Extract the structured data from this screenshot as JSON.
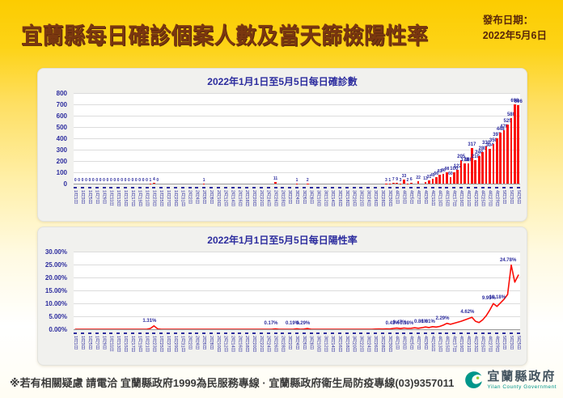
{
  "header": {
    "title": "宜蘭縣每日確診個案人數及當天篩檢陽性率",
    "release_label": "發布日期：",
    "release_date": "2022年5月6日"
  },
  "colors": {
    "bar": "#fb0d07",
    "line": "#fb0d07",
    "label_blue": "#2c2c9e",
    "title_brown": "#7a3710",
    "page_yellow": "#fccc00"
  },
  "x_tick_labels": [
    "1月1日",
    "1月3日",
    "1月5日",
    "1月7日",
    "1月9日",
    "1月11日",
    "1月13日",
    "1月15日",
    "1月17日",
    "1月19日",
    "1月21日",
    "1月23日",
    "1月25日",
    "1月27日",
    "1月29日",
    "1月31日",
    "2月2日",
    "2月4日",
    "2月6日",
    "2月8日",
    "2月10日",
    "2月12日",
    "2月14日",
    "2月16日",
    "2月18日",
    "2月20日",
    "2月22日",
    "2月24日",
    "2月26日",
    "2月28日",
    "3月2日",
    "3月4日",
    "3月6日",
    "3月8日",
    "3月10日",
    "3月12日",
    "3月14日",
    "3月16日",
    "3月18日",
    "3月20日",
    "3月22日",
    "3月24日",
    "3月26日",
    "3月28日",
    "3月30日",
    "4月1日",
    "4月3日",
    "4月5日",
    "4月7日",
    "4月9日",
    "4月11日",
    "4月13日",
    "4月15日",
    "4月17日",
    "4月19日",
    "4月21日",
    "4月23日",
    "4月25日",
    "4月27日",
    "4月29日",
    "5月1日",
    "5月3日",
    "5月5日"
  ],
  "chart_data": [
    {
      "type": "bar",
      "title": "2022年1月1日至5月5日每日確診數",
      "xlabel": "",
      "ylabel": "",
      "ylim": [
        0,
        800
      ],
      "y_tick_labels": [
        "800",
        "700",
        "600",
        "500",
        "400",
        "300",
        "200",
        "100",
        "0"
      ],
      "grid": true,
      "date_range": "2022-01-01 to 2022-05-05, one bar per day",
      "values": [
        0,
        0,
        0,
        0,
        0,
        0,
        0,
        0,
        0,
        0,
        0,
        0,
        0,
        0,
        0,
        0,
        0,
        0,
        0,
        0,
        0,
        1,
        4,
        0,
        0,
        0,
        0,
        0,
        0,
        0,
        0,
        0,
        0,
        0,
        0,
        0,
        1,
        0,
        0,
        0,
        0,
        0,
        0,
        0,
        0,
        0,
        0,
        0,
        0,
        0,
        0,
        0,
        0,
        0,
        0,
        0,
        11,
        0,
        0,
        0,
        0,
        0,
        1,
        0,
        0,
        2,
        0,
        0,
        0,
        0,
        0,
        0,
        0,
        0,
        0,
        0,
        0,
        0,
        0,
        0,
        0,
        0,
        0,
        0,
        0,
        0,
        0,
        3,
        1,
        7,
        9,
        3,
        33,
        2,
        6,
        0,
        22,
        0,
        13,
        31,
        45,
        56,
        81,
        86,
        98,
        60,
        100,
        122,
        205,
        178,
        180,
        317,
        210,
        240,
        280,
        330,
        304,
        350,
        397,
        448,
        470,
        525,
        580,
        698,
        696
      ],
      "labeled_values_visible": [
        "0",
        "1",
        "4",
        "0",
        "1",
        "11",
        "1",
        "2",
        "317",
        "330",
        "304",
        "397",
        "448",
        "525",
        "698",
        "696"
      ]
    },
    {
      "type": "line",
      "title": "2022年1月1日至5月5日每日陽性率",
      "xlabel": "",
      "ylabel": "",
      "ylim": [
        0,
        30
      ],
      "y_tick_labels": [
        "30.00%",
        "25.00%",
        "20.00%",
        "15.00%",
        "10.00%",
        "5.00%",
        "0.00%"
      ],
      "grid": true,
      "date_range": "2022-01-01 to 2022-05-05, one point per day",
      "values": [
        0,
        0,
        0,
        0,
        0,
        0,
        0,
        0,
        0,
        0,
        0,
        0,
        0,
        0,
        0,
        0,
        0,
        0,
        0,
        0,
        0,
        0.3,
        1.31,
        0.15,
        0,
        0,
        0,
        0,
        0,
        0,
        0,
        0,
        0,
        0,
        0,
        0,
        0,
        0,
        0,
        0,
        0,
        0,
        0,
        0,
        0,
        0,
        0,
        0,
        0,
        0,
        0,
        0,
        0,
        0,
        0,
        0,
        0.17,
        0,
        0,
        0,
        0,
        0,
        0.19,
        0,
        0.05,
        0.29,
        0,
        0,
        0,
        0,
        0,
        0,
        0,
        0,
        0,
        0,
        0,
        0,
        0,
        0,
        0,
        0,
        0,
        0,
        0.05,
        0.1,
        0.05,
        0.15,
        0.1,
        0.3,
        0.43,
        0.25,
        0.47,
        0.3,
        0.38,
        0.55,
        0.38,
        0.6,
        0.86,
        0.65,
        1.01,
        0.85,
        1.1,
        1.6,
        2.29,
        1.9,
        2.3,
        2.7,
        3.1,
        3.6,
        4.1,
        4.62,
        3.1,
        2.6,
        3.6,
        5.2,
        7.4,
        9.95,
        8.8,
        10.18,
        11.6,
        13.4,
        24.78,
        18.2,
        20.9
      ],
      "annotations": [
        {
          "index": 22,
          "text": "1.31%"
        },
        {
          "index": 56,
          "text": "0.17%"
        },
        {
          "index": 62,
          "text": "0.19%"
        },
        {
          "index": 65,
          "text": "0.29%"
        },
        {
          "index": 90,
          "text": "0.43%"
        },
        {
          "index": 92,
          "text": "0.47%"
        },
        {
          "index": 94,
          "text": "0.38%"
        },
        {
          "index": 98,
          "text": "0.86%"
        },
        {
          "index": 100,
          "text": "1.01%"
        },
        {
          "index": 104,
          "text": "2.29%"
        },
        {
          "index": 111,
          "text": "4.62%"
        },
        {
          "index": 117,
          "text": "9.95%"
        },
        {
          "index": 119,
          "text": "10.18%"
        },
        {
          "index": 122,
          "text": "24.78%"
        }
      ]
    }
  ],
  "footer": {
    "note": "※若有相關疑慮 請電洽  宜蘭縣政府1999為民服務專線 · 宜蘭縣政府衛生局防疫專線(03)9357011",
    "logo_title": "宜蘭縣政府",
    "logo_subtitle": "Yilan County Government"
  }
}
